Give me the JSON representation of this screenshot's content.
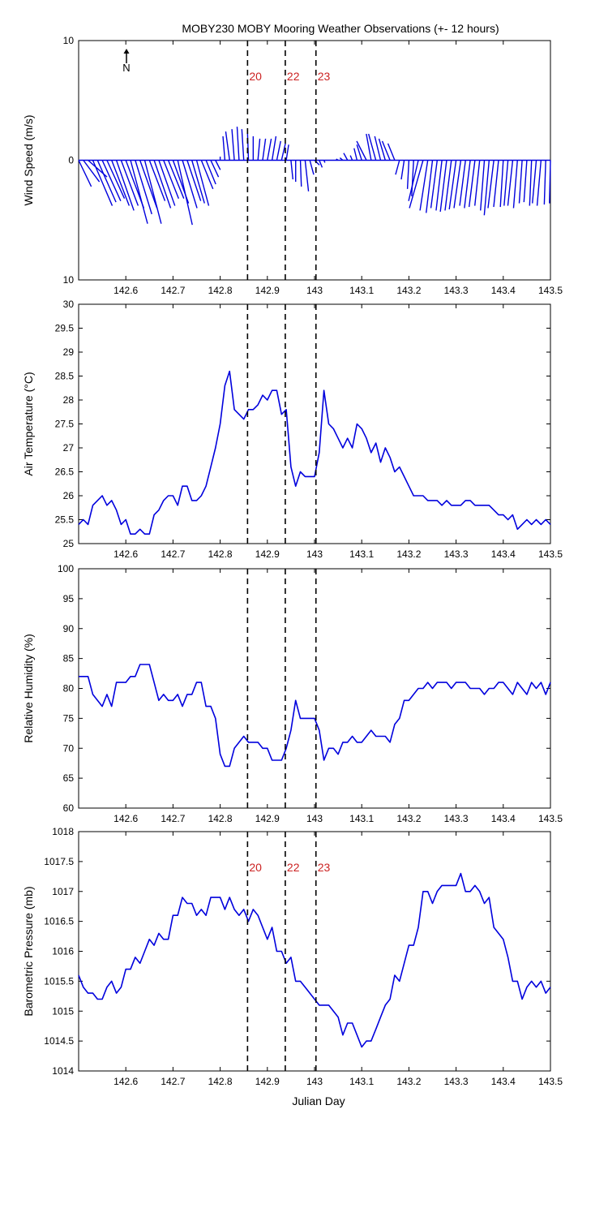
{
  "title": "MOBY230 MOBY Mooring Weather Observations (+- 12 hours)",
  "xlabel": "Julian Day",
  "colors": {
    "data": "#0000dd",
    "marker_label": "#cc2222",
    "axis": "#000000"
  },
  "x_ticks": [
    "142.6",
    "142.7",
    "142.8",
    "142.9",
    "143",
    "143.1",
    "143.2",
    "143.3",
    "143.4",
    "143.5"
  ],
  "north_label": "N",
  "markers": [
    {
      "label": "20",
      "x": 142.858
    },
    {
      "label": "22",
      "x": 142.938
    },
    {
      "label": "23",
      "x": 143.003
    }
  ],
  "chart_data": [
    {
      "type": "line",
      "subtype": "wind-stick-plot",
      "ylabel": "Wind Speed (m/s)",
      "ylim": [
        -10,
        10
      ],
      "yticks": [
        "10",
        "0",
        "10"
      ],
      "xlim": [
        142.5,
        143.5
      ],
      "series": [
        {
          "x": [
            142.5,
            142.51,
            142.52,
            142.53,
            142.54,
            142.55,
            142.56,
            142.57,
            142.58,
            142.59,
            142.6,
            142.61,
            142.62,
            142.63,
            142.64,
            142.65,
            142.66,
            142.67,
            142.68,
            142.69,
            142.7,
            142.71,
            142.72,
            142.73,
            142.74,
            142.75,
            142.76,
            142.77,
            142.78,
            142.79,
            142.8,
            142.81,
            142.82,
            142.83,
            142.84,
            142.85,
            142.86,
            142.87,
            142.88,
            142.89,
            142.9,
            142.91,
            142.92,
            142.93,
            142.94,
            142.95,
            142.96,
            142.97,
            142.98,
            142.99,
            143.0,
            143.01,
            143.02,
            143.03,
            143.04,
            143.05,
            143.06,
            143.07,
            143.08,
            143.09,
            143.1,
            143.11,
            143.12,
            143.13,
            143.14,
            143.15,
            143.16,
            143.17,
            143.18,
            143.19,
            143.2,
            143.21,
            143.22,
            143.23,
            143.24,
            143.25,
            143.26,
            143.27,
            143.28,
            143.29,
            143.3,
            143.31,
            143.32,
            143.33,
            143.34,
            143.35,
            143.36,
            143.37,
            143.38,
            143.39,
            143.4,
            143.41,
            143.42,
            143.43,
            143.44,
            143.45,
            143.46,
            143.47,
            143.48,
            143.49,
            143.5
          ],
          "u": [
            2.6,
            3.3,
            3.9,
            4.0,
            3.8,
            3.8,
            3.6,
            3.6,
            3.6,
            3.5,
            3.7,
            3.5,
            3.4,
            3.5,
            3.4,
            3.2,
            3.4,
            3.3,
            3.1,
            3.2,
            3.2,
            3.0,
            3.0,
            2.8,
            2.6,
            2.5,
            2.4,
            2.0,
            1.6,
            1.0,
            0.0,
            -0.4,
            -0.8,
            -0.5,
            -0.4,
            -0.4,
            -0.2,
            0.0,
            0.4,
            0.6,
            0.8,
            0.8,
            0.8,
            0.8,
            0.5,
            0.4,
            0.0,
            0.2,
            0.7,
            0.8,
            1.0,
            0.6,
            0.2,
            0.0,
            0.0,
            -0.4,
            -0.6,
            -0.8,
            -0.4,
            -0.6,
            -1.0,
            -2.0,
            -1.0,
            -1.5,
            -1.2,
            -1.3,
            -1.6,
            -1.4,
            -0.8,
            -0.6,
            -0.3,
            -0.4,
            -2.0,
            -2.8,
            -1.6,
            -1.3,
            -1.3,
            -1.2,
            -1.3,
            -1.3,
            -1.4,
            -1.4,
            -1.2,
            -1.2,
            -1.2,
            -1.0,
            -0.8,
            -1.0,
            -1.2,
            -1.0,
            -0.6,
            -0.8,
            -1.0,
            -0.8,
            -0.6,
            -0.6,
            -0.4,
            -0.8,
            -0.8,
            -0.3,
            -0.2
          ],
          "v": [
            -2.2,
            -1.8,
            -1.4,
            -3.8,
            -3.5,
            -3.4,
            -3.2,
            -3.8,
            -4.2,
            -3.8,
            -4.0,
            -5.3,
            -4.5,
            -4.0,
            -5.3,
            -3.4,
            -4.0,
            -3.8,
            -3.2,
            -3.2,
            -3.6,
            -5.4,
            -4.0,
            -3.4,
            -3.6,
            -3.8,
            -2.4,
            -2.0,
            -1.4,
            -0.8,
            0.3,
            2.0,
            2.4,
            2.6,
            2.8,
            2.6,
            2.3,
            2.0,
            1.8,
            1.8,
            1.8,
            2.0,
            1.6,
            1.4,
            1.3,
            -1.6,
            -1.8,
            -2.2,
            -2.6,
            -1.2,
            -0.4,
            -0.6,
            -0.2,
            0.0,
            0.0,
            0.1,
            0.2,
            0.6,
            0.4,
            1.0,
            1.3,
            1.6,
            2.2,
            2.2,
            2.0,
            1.8,
            1.6,
            1.4,
            -1.2,
            -1.6,
            -2.4,
            -3.0,
            -3.4,
            -4.0,
            -4.2,
            -4.4,
            -4.0,
            -4.2,
            -4.3,
            -4.2,
            -4.1,
            -4.0,
            -3.8,
            -4.0,
            -3.9,
            -3.8,
            -4.2,
            -4.6,
            -4.0,
            -3.9,
            -3.9,
            -3.8,
            -3.8,
            -4.0,
            -3.6,
            -3.5,
            -3.8,
            -3.6,
            -3.8,
            -3.7,
            -3.6
          ]
        }
      ]
    },
    {
      "type": "line",
      "ylabel": "Air Temperature (°C)",
      "ylim": [
        25,
        30
      ],
      "yticks": [
        "25",
        "25.5",
        "26",
        "26.5",
        "27",
        "27.5",
        "28",
        "28.5",
        "29",
        "29.5",
        "30"
      ],
      "xlim": [
        142.5,
        143.5
      ],
      "series": [
        {
          "x": [
            142.5,
            142.51,
            142.52,
            142.53,
            142.54,
            142.55,
            142.56,
            142.57,
            142.58,
            142.59,
            142.6,
            142.61,
            142.62,
            142.63,
            142.64,
            142.65,
            142.66,
            142.67,
            142.68,
            142.69,
            142.7,
            142.71,
            142.72,
            142.73,
            142.74,
            142.75,
            142.76,
            142.77,
            142.78,
            142.79,
            142.8,
            142.81,
            142.82,
            142.83,
            142.84,
            142.85,
            142.86,
            142.87,
            142.88,
            142.89,
            142.9,
            142.91,
            142.92,
            142.93,
            142.94,
            142.95,
            142.96,
            142.97,
            142.98,
            142.99,
            143.0,
            143.01,
            143.02,
            143.03,
            143.04,
            143.05,
            143.06,
            143.07,
            143.08,
            143.09,
            143.1,
            143.11,
            143.12,
            143.13,
            143.14,
            143.15,
            143.16,
            143.17,
            143.18,
            143.19,
            143.2,
            143.21,
            143.22,
            143.23,
            143.24,
            143.25,
            143.26,
            143.27,
            143.28,
            143.29,
            143.3,
            143.31,
            143.32,
            143.33,
            143.34,
            143.35,
            143.36,
            143.37,
            143.38,
            143.39,
            143.4,
            143.41,
            143.42,
            143.43,
            143.44,
            143.45,
            143.46,
            143.47,
            143.48,
            143.49,
            143.5
          ],
          "y": [
            25.4,
            25.5,
            25.4,
            25.8,
            25.9,
            26.0,
            25.8,
            25.9,
            25.7,
            25.4,
            25.5,
            25.2,
            25.2,
            25.3,
            25.2,
            25.2,
            25.6,
            25.7,
            25.9,
            26.0,
            26.0,
            25.8,
            26.2,
            26.2,
            25.9,
            25.9,
            26.0,
            26.2,
            26.6,
            27.0,
            27.5,
            28.3,
            28.6,
            27.8,
            27.7,
            27.6,
            27.8,
            27.8,
            27.9,
            28.1,
            28.0,
            28.2,
            28.2,
            27.7,
            27.8,
            26.6,
            26.2,
            26.5,
            26.4,
            26.4,
            26.4,
            26.9,
            28.2,
            27.5,
            27.4,
            27.2,
            27.0,
            27.2,
            27.0,
            27.5,
            27.4,
            27.2,
            26.9,
            27.1,
            26.7,
            27.0,
            26.8,
            26.5,
            26.6,
            26.4,
            26.2,
            26.0,
            26.0,
            26.0,
            25.9,
            25.9,
            25.9,
            25.8,
            25.9,
            25.8,
            25.8,
            25.8,
            25.9,
            25.9,
            25.8,
            25.8,
            25.8,
            25.8,
            25.7,
            25.6,
            25.6,
            25.5,
            25.6,
            25.3,
            25.4,
            25.5,
            25.4,
            25.5,
            25.4,
            25.5,
            25.4
          ]
        }
      ]
    },
    {
      "type": "line",
      "ylabel": "Relative Humidity (%)",
      "ylim": [
        60,
        100
      ],
      "yticks": [
        "60",
        "65",
        "70",
        "75",
        "80",
        "85",
        "90",
        "95",
        "100"
      ],
      "xlim": [
        142.5,
        143.5
      ],
      "series": [
        {
          "x": [
            142.5,
            142.51,
            142.52,
            142.53,
            142.54,
            142.55,
            142.56,
            142.57,
            142.58,
            142.59,
            142.6,
            142.61,
            142.62,
            142.63,
            142.64,
            142.65,
            142.66,
            142.67,
            142.68,
            142.69,
            142.7,
            142.71,
            142.72,
            142.73,
            142.74,
            142.75,
            142.76,
            142.77,
            142.78,
            142.79,
            142.8,
            142.81,
            142.82,
            142.83,
            142.84,
            142.85,
            142.86,
            142.87,
            142.88,
            142.89,
            142.9,
            142.91,
            142.92,
            142.93,
            142.94,
            142.95,
            142.96,
            142.97,
            142.98,
            142.99,
            143.0,
            143.01,
            143.02,
            143.03,
            143.04,
            143.05,
            143.06,
            143.07,
            143.08,
            143.09,
            143.1,
            143.11,
            143.12,
            143.13,
            143.14,
            143.15,
            143.16,
            143.17,
            143.18,
            143.19,
            143.2,
            143.21,
            143.22,
            143.23,
            143.24,
            143.25,
            143.26,
            143.27,
            143.28,
            143.29,
            143.3,
            143.31,
            143.32,
            143.33,
            143.34,
            143.35,
            143.36,
            143.37,
            143.38,
            143.39,
            143.4,
            143.41,
            143.42,
            143.43,
            143.44,
            143.45,
            143.46,
            143.47,
            143.48,
            143.49,
            143.5
          ],
          "y": [
            82,
            82,
            82,
            79,
            78,
            77,
            79,
            77,
            81,
            81,
            81,
            82,
            82,
            84,
            84,
            84,
            81,
            78,
            79,
            78,
            78,
            79,
            77,
            79,
            79,
            81,
            81,
            77,
            77,
            75,
            69,
            67,
            67,
            70,
            71,
            72,
            71,
            71,
            71,
            70,
            70,
            68,
            68,
            68,
            70,
            73,
            78,
            75,
            75,
            75,
            75,
            73,
            68,
            70,
            70,
            69,
            71,
            71,
            72,
            71,
            71,
            72,
            73,
            72,
            72,
            72,
            71,
            74,
            75,
            78,
            78,
            79,
            80,
            80,
            81,
            80,
            81,
            81,
            81,
            80,
            81,
            81,
            81,
            80,
            80,
            80,
            79,
            80,
            80,
            81,
            81,
            80,
            79,
            81,
            80,
            79,
            81,
            80,
            81,
            79,
            81
          ]
        }
      ]
    },
    {
      "type": "line",
      "ylabel": "Barometric Pressure (mb)",
      "ylim": [
        1014,
        1018
      ],
      "yticks": [
        "1014",
        "1014.5",
        "1015",
        "1015.5",
        "1016",
        "1016.5",
        "1017",
        "1017.5",
        "1018"
      ],
      "xlim": [
        142.5,
        143.5
      ],
      "series": [
        {
          "x": [
            142.5,
            142.51,
            142.52,
            142.53,
            142.54,
            142.55,
            142.56,
            142.57,
            142.58,
            142.59,
            142.6,
            142.61,
            142.62,
            142.63,
            142.64,
            142.65,
            142.66,
            142.67,
            142.68,
            142.69,
            142.7,
            142.71,
            142.72,
            142.73,
            142.74,
            142.75,
            142.76,
            142.77,
            142.78,
            142.79,
            142.8,
            142.81,
            142.82,
            142.83,
            142.84,
            142.85,
            142.86,
            142.87,
            142.88,
            142.89,
            142.9,
            142.91,
            142.92,
            142.93,
            142.94,
            142.95,
            142.96,
            142.97,
            142.98,
            142.99,
            143.0,
            143.01,
            143.02,
            143.03,
            143.04,
            143.05,
            143.06,
            143.07,
            143.08,
            143.09,
            143.1,
            143.11,
            143.12,
            143.13,
            143.14,
            143.15,
            143.16,
            143.17,
            143.18,
            143.19,
            143.2,
            143.21,
            143.22,
            143.23,
            143.24,
            143.25,
            143.26,
            143.27,
            143.28,
            143.29,
            143.3,
            143.31,
            143.32,
            143.33,
            143.34,
            143.35,
            143.36,
            143.37,
            143.38,
            143.39,
            143.4,
            143.41,
            143.42,
            143.43,
            143.44,
            143.45,
            143.46,
            143.47,
            143.48,
            143.49,
            143.5
          ],
          "y": [
            1015.6,
            1015.4,
            1015.3,
            1015.3,
            1015.2,
            1015.2,
            1015.4,
            1015.5,
            1015.3,
            1015.4,
            1015.7,
            1015.7,
            1015.9,
            1015.8,
            1016.0,
            1016.2,
            1016.1,
            1016.3,
            1016.2,
            1016.2,
            1016.6,
            1016.6,
            1016.9,
            1016.8,
            1016.8,
            1016.6,
            1016.7,
            1016.6,
            1016.9,
            1016.9,
            1016.9,
            1016.7,
            1016.9,
            1016.7,
            1016.6,
            1016.7,
            1016.5,
            1016.7,
            1016.6,
            1016.4,
            1016.2,
            1016.4,
            1016.0,
            1016.0,
            1015.8,
            1015.9,
            1015.5,
            1015.5,
            1015.4,
            1015.3,
            1015.2,
            1015.1,
            1015.1,
            1015.1,
            1015.0,
            1014.9,
            1014.6,
            1014.8,
            1014.8,
            1014.6,
            1014.4,
            1014.5,
            1014.5,
            1014.7,
            1014.9,
            1015.1,
            1015.2,
            1015.6,
            1015.5,
            1015.8,
            1016.1,
            1016.1,
            1016.4,
            1017.0,
            1017.0,
            1016.8,
            1017.0,
            1017.1,
            1017.1,
            1017.1,
            1017.1,
            1017.3,
            1017.0,
            1017.0,
            1017.1,
            1017.0,
            1016.8,
            1016.9,
            1016.4,
            1016.3,
            1016.2,
            1015.9,
            1015.5,
            1015.5,
            1015.2,
            1015.4,
            1015.5,
            1015.4,
            1015.5,
            1015.3,
            1015.4
          ]
        }
      ]
    }
  ]
}
